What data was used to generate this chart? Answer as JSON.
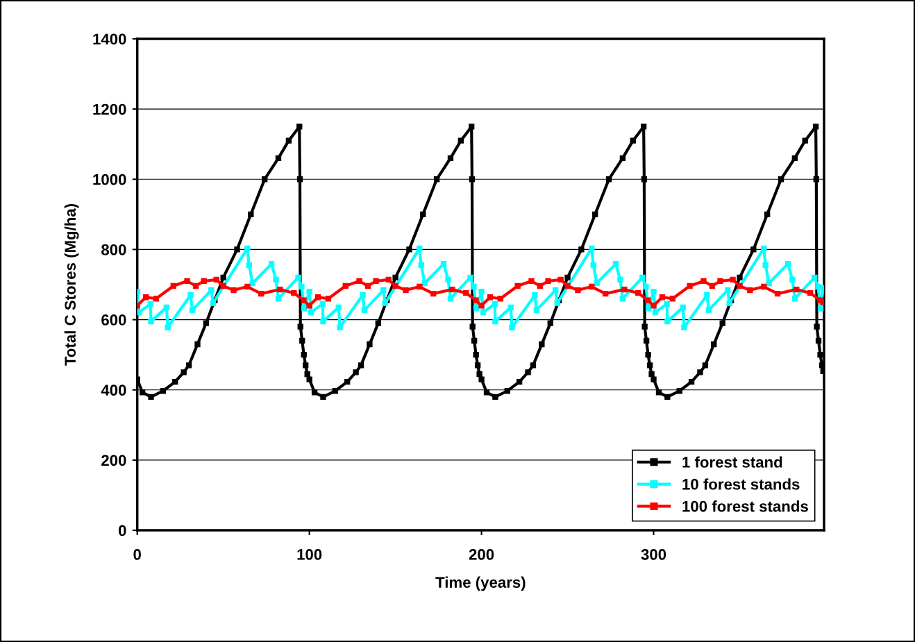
{
  "chart_data": {
    "type": "line",
    "xlabel": "Time (years)",
    "ylabel": "Total C Stores (Mg/ha)",
    "xlim": [
      0,
      399
    ],
    "xticks": [
      0,
      100,
      200,
      300
    ],
    "ylim": [
      0,
      1400
    ],
    "yticks": [
      0,
      200,
      400,
      600,
      800,
      1000,
      1200,
      1400
    ],
    "grid": "y",
    "legend": "bottom right",
    "marker": "square",
    "line_style": "solid",
    "series": [
      {
        "name": "1 forest stand",
        "color": "#000000",
        "x": [
          0,
          3,
          8,
          15,
          22,
          27,
          30,
          35,
          40,
          45,
          50,
          58,
          66,
          74,
          82,
          88,
          94.2,
          94.5,
          94.8,
          95.8,
          96.8,
          97.8,
          98.8,
          100,
          103,
          108,
          115,
          122,
          127,
          130,
          135,
          140,
          145,
          150,
          158,
          166,
          174,
          182,
          188,
          194.2,
          194.5,
          194.8,
          195.8,
          196.8,
          197.8,
          198.8,
          200,
          203,
          208,
          215,
          222,
          227,
          230,
          235,
          240,
          245,
          250,
          258,
          266,
          274,
          282,
          288,
          294.2,
          294.5,
          294.8,
          295.8,
          296.8,
          297.8,
          298.8,
          300,
          303,
          308,
          315,
          322,
          327,
          330,
          335,
          340,
          345,
          350,
          358,
          366,
          374,
          382,
          388,
          394.2,
          394.5,
          394.8,
          395.8,
          396.8,
          397.8,
          398.5
        ],
        "values": [
          430,
          393,
          380,
          397,
          423,
          450,
          470,
          530,
          590,
          655,
          720,
          800,
          900,
          1000,
          1060,
          1110,
          1150,
          1000,
          580,
          540,
          500,
          470,
          445,
          430,
          393,
          380,
          397,
          423,
          450,
          470,
          530,
          590,
          655,
          720,
          800,
          900,
          1000,
          1060,
          1110,
          1150,
          1000,
          580,
          540,
          500,
          470,
          445,
          430,
          393,
          380,
          397,
          423,
          450,
          470,
          530,
          590,
          655,
          720,
          800,
          900,
          1000,
          1060,
          1110,
          1150,
          1000,
          580,
          540,
          500,
          470,
          445,
          430,
          393,
          380,
          397,
          423,
          450,
          470,
          530,
          590,
          655,
          720,
          800,
          900,
          1000,
          1060,
          1110,
          1150,
          1000,
          580,
          540,
          500,
          470,
          453
        ]
      },
      {
        "name": "10 forest stands",
        "color": "#00ffff",
        "x": [
          0,
          1,
          7.7,
          8,
          17,
          17.7,
          31,
          32,
          43,
          44,
          64,
          65,
          67,
          78,
          80.6,
          82,
          93.5,
          95.5,
          97,
          100,
          101,
          107.7,
          108,
          117,
          117.7,
          131,
          132,
          143,
          144,
          164,
          165,
          167,
          178,
          180.6,
          182,
          193.5,
          195.5,
          197,
          200,
          201,
          207.7,
          208,
          217,
          217.7,
          231,
          232,
          243,
          244,
          264,
          265,
          267,
          278,
          280.6,
          282,
          293.5,
          295.5,
          297,
          300,
          301,
          307.7,
          308,
          317,
          317.7,
          331,
          332,
          343,
          344,
          364,
          365,
          367,
          378,
          380.6,
          382,
          393.5,
          395.5,
          397,
          398.5
        ],
        "values": [
          680,
          621,
          645,
          595,
          635,
          578,
          670,
          627,
          684,
          647,
          803,
          755,
          704,
          759,
          714,
          660,
          720,
          694,
          632,
          680,
          621,
          645,
          595,
          635,
          578,
          670,
          627,
          684,
          647,
          803,
          755,
          704,
          759,
          714,
          660,
          720,
          694,
          632,
          680,
          621,
          645,
          595,
          635,
          578,
          670,
          627,
          684,
          647,
          803,
          755,
          704,
          759,
          714,
          660,
          720,
          694,
          632,
          680,
          621,
          645,
          595,
          635,
          578,
          670,
          627,
          684,
          647,
          803,
          755,
          704,
          759,
          714,
          660,
          720,
          694,
          632,
          690
        ]
      },
      {
        "name": "100 forest stands",
        "color": "#ff0000",
        "x": [
          0,
          5,
          11,
          21,
          29,
          34,
          38.7,
          46,
          50,
          56,
          64,
          72,
          83,
          91,
          96.7,
          100,
          105,
          111,
          121,
          129,
          134,
          138.7,
          146,
          150,
          156,
          164,
          172,
          183,
          191,
          196.7,
          200,
          205,
          211,
          221,
          229,
          234,
          238.7,
          246,
          250,
          256,
          264,
          272,
          283,
          291,
          296.7,
          300,
          305,
          311,
          321,
          329,
          334,
          338.7,
          346,
          350,
          356,
          364,
          372,
          383,
          391,
          396.7,
          398.5
        ],
        "values": [
          640,
          664,
          660,
          696,
          710,
          696,
          710,
          714,
          696,
          684,
          694,
          674,
          686,
          676,
          655,
          640,
          664,
          660,
          696,
          710,
          696,
          710,
          714,
          696,
          684,
          694,
          674,
          686,
          676,
          655,
          640,
          664,
          660,
          696,
          710,
          696,
          710,
          714,
          696,
          684,
          694,
          674,
          686,
          676,
          655,
          640,
          664,
          660,
          696,
          710,
          696,
          710,
          714,
          696,
          684,
          694,
          674,
          686,
          676,
          655,
          650
        ]
      }
    ]
  }
}
